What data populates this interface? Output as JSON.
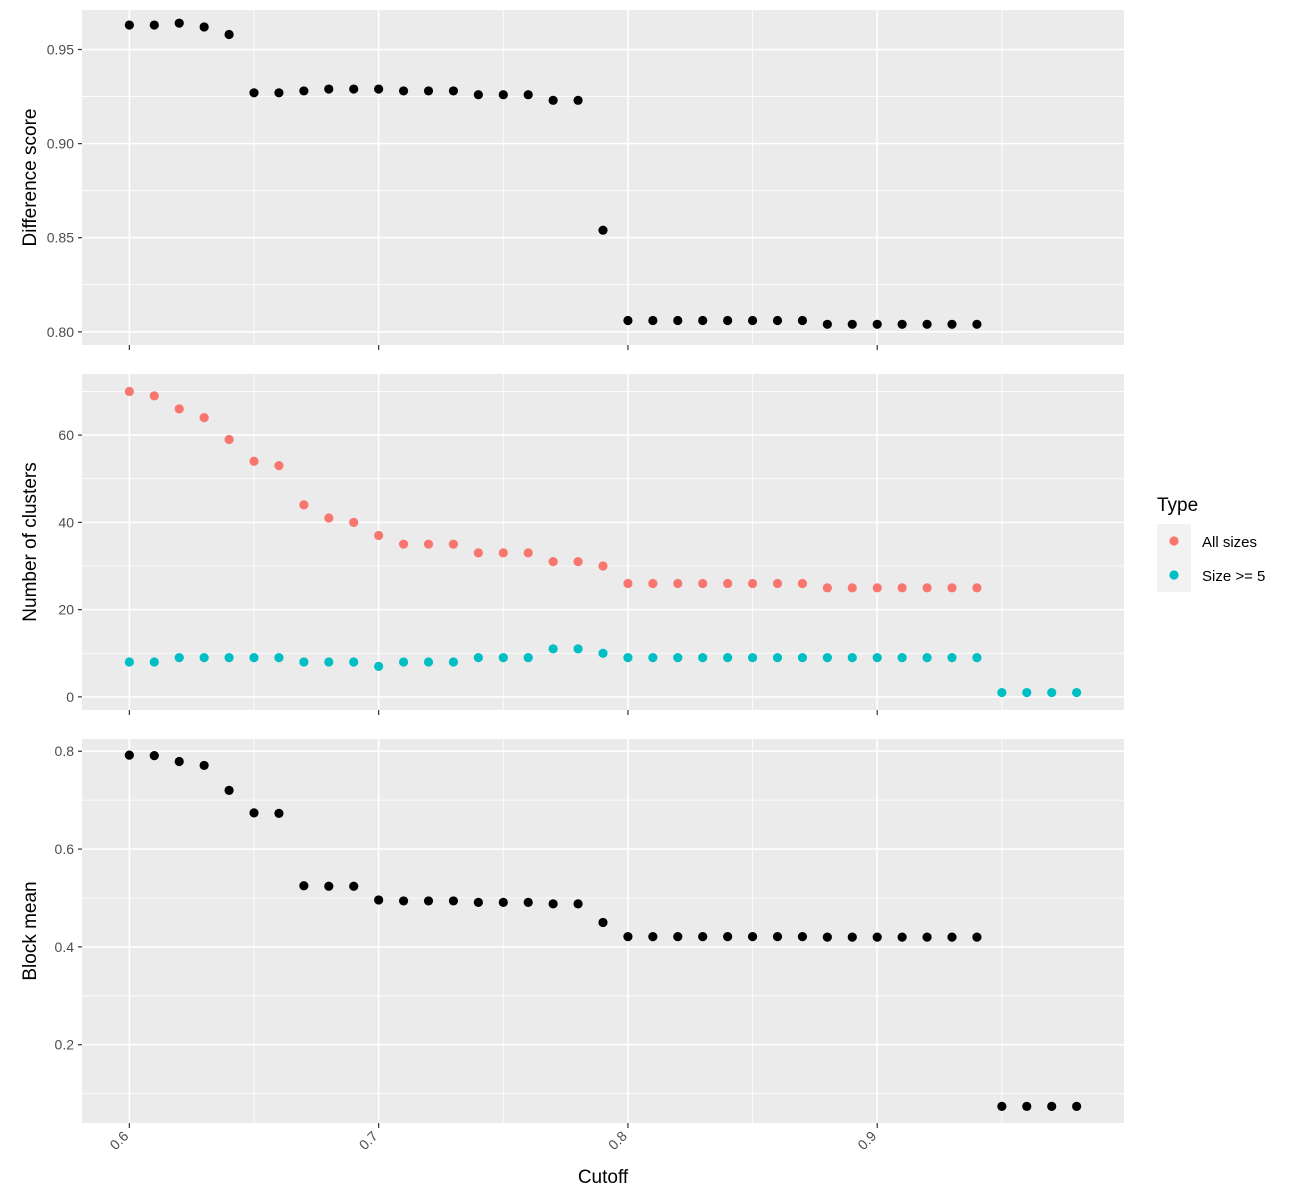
{
  "chart_data": [
    {
      "type": "scatter",
      "ylabel": "Difference score",
      "ylim": [
        0.793,
        0.971
      ],
      "yticks": [
        0.8,
        0.85,
        0.9,
        0.95
      ],
      "ytick_labels": [
        "0.80",
        "0.85",
        "0.90",
        "0.95"
      ],
      "xlim": [
        0.581,
        0.999
      ],
      "series": [
        {
          "color": "#000000",
          "x": [
            0.6,
            0.61,
            0.62,
            0.63,
            0.64,
            0.65,
            0.66,
            0.67,
            0.68,
            0.69,
            0.7,
            0.71,
            0.72,
            0.73,
            0.74,
            0.75,
            0.76,
            0.77,
            0.78,
            0.79,
            0.8,
            0.81,
            0.82,
            0.83,
            0.84,
            0.85,
            0.86,
            0.87,
            0.88,
            0.89,
            0.9,
            0.91,
            0.92,
            0.93,
            0.94
          ],
          "y": [
            0.963,
            0.963,
            0.964,
            0.962,
            0.958,
            0.927,
            0.927,
            0.928,
            0.929,
            0.929,
            0.929,
            0.928,
            0.928,
            0.928,
            0.926,
            0.926,
            0.926,
            0.923,
            0.923,
            0.854,
            0.806,
            0.806,
            0.806,
            0.806,
            0.806,
            0.806,
            0.806,
            0.806,
            0.804,
            0.804,
            0.804,
            0.804,
            0.804,
            0.804,
            0.804
          ]
        }
      ]
    },
    {
      "type": "scatter",
      "ylabel": "Number of clusters",
      "ylim": [
        -3,
        74
      ],
      "yticks": [
        0,
        20,
        40,
        60
      ],
      "ytick_labels": [
        "0",
        "20",
        "40",
        "60"
      ],
      "xlim": [
        0.581,
        0.999
      ],
      "legend": {
        "title": "Type",
        "position": "right"
      },
      "series": [
        {
          "name": "All sizes",
          "color": "#F8766D",
          "x": [
            0.6,
            0.61,
            0.62,
            0.63,
            0.64,
            0.65,
            0.66,
            0.67,
            0.68,
            0.69,
            0.7,
            0.71,
            0.72,
            0.73,
            0.74,
            0.75,
            0.76,
            0.77,
            0.78,
            0.79,
            0.8,
            0.81,
            0.82,
            0.83,
            0.84,
            0.85,
            0.86,
            0.87,
            0.88,
            0.89,
            0.9,
            0.91,
            0.92,
            0.93,
            0.94
          ],
          "y": [
            70,
            69,
            66,
            64,
            59,
            54,
            53,
            44,
            41,
            40,
            37,
            35,
            35,
            35,
            33,
            33,
            33,
            31,
            31,
            30,
            26,
            26,
            26,
            26,
            26,
            26,
            26,
            26,
            25,
            25,
            25,
            25,
            25,
            25,
            25
          ]
        },
        {
          "name": "Size >= 5",
          "color": "#00BFC4",
          "x": [
            0.6,
            0.61,
            0.62,
            0.63,
            0.64,
            0.65,
            0.66,
            0.67,
            0.68,
            0.69,
            0.7,
            0.71,
            0.72,
            0.73,
            0.74,
            0.75,
            0.76,
            0.77,
            0.78,
            0.79,
            0.8,
            0.81,
            0.82,
            0.83,
            0.84,
            0.85,
            0.86,
            0.87,
            0.88,
            0.89,
            0.9,
            0.91,
            0.92,
            0.93,
            0.94,
            0.95,
            0.96,
            0.97,
            0.98
          ],
          "y": [
            8,
            8,
            9,
            9,
            9,
            9,
            9,
            8,
            8,
            8,
            7,
            8,
            8,
            8,
            9,
            9,
            9,
            11,
            11,
            10,
            9,
            9,
            9,
            9,
            9,
            9,
            9,
            9,
            9,
            9,
            9,
            9,
            9,
            9,
            9,
            1,
            1,
            1,
            1
          ]
        }
      ]
    },
    {
      "type": "scatter",
      "ylabel": "Block mean",
      "xlabel": "Cutoff",
      "ylim": [
        0.04,
        0.825
      ],
      "yticks": [
        0.2,
        0.4,
        0.6,
        0.8
      ],
      "ytick_labels": [
        "0.2",
        "0.4",
        "0.6",
        "0.8"
      ],
      "xlim": [
        0.581,
        0.999
      ],
      "xticks": [
        0.6,
        0.7,
        0.8,
        0.9
      ],
      "xtick_labels": [
        "0.6",
        "0.7",
        "0.8",
        "0.9"
      ],
      "series": [
        {
          "color": "#000000",
          "x": [
            0.6,
            0.61,
            0.62,
            0.63,
            0.64,
            0.65,
            0.66,
            0.67,
            0.68,
            0.69,
            0.7,
            0.71,
            0.72,
            0.73,
            0.74,
            0.75,
            0.76,
            0.77,
            0.78,
            0.79,
            0.8,
            0.81,
            0.82,
            0.83,
            0.84,
            0.85,
            0.86,
            0.87,
            0.88,
            0.89,
            0.9,
            0.91,
            0.92,
            0.93,
            0.94,
            0.95,
            0.96,
            0.97,
            0.98
          ],
          "y": [
            0.792,
            0.791,
            0.779,
            0.771,
            0.72,
            0.674,
            0.673,
            0.525,
            0.524,
            0.524,
            0.496,
            0.494,
            0.494,
            0.494,
            0.491,
            0.491,
            0.491,
            0.488,
            0.488,
            0.45,
            0.421,
            0.421,
            0.421,
            0.421,
            0.421,
            0.421,
            0.421,
            0.421,
            0.42,
            0.42,
            0.42,
            0.42,
            0.42,
            0.42,
            0.42,
            0.074,
            0.074,
            0.074,
            0.074
          ]
        }
      ]
    }
  ]
}
